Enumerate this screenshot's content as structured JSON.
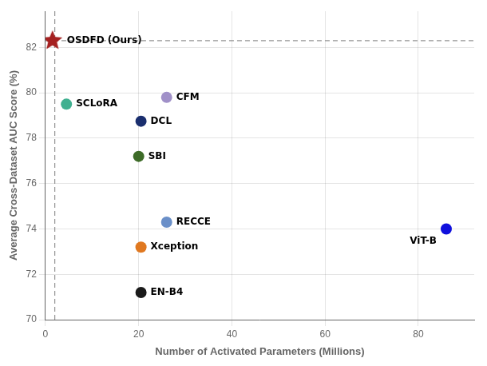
{
  "chart_data": {
    "type": "scatter",
    "xlabel": "Number of Activated Parameters (Millions)",
    "ylabel": "Average Cross-Dataset AUC Score (%)",
    "series": [
      {
        "name": "OSDFD (Ours)",
        "x": [
          1.5
        ],
        "values": [
          82.3
        ],
        "color": "#A52020",
        "marker": "star"
      },
      {
        "name": "SCLoRA",
        "x": [
          4.5
        ],
        "values": [
          79.5
        ],
        "color": "#40B090",
        "marker": "circle"
      },
      {
        "name": "CFM",
        "x": [
          26.0
        ],
        "values": [
          79.8
        ],
        "color": "#A090C8",
        "marker": "circle"
      },
      {
        "name": "DCL",
        "x": [
          20.5
        ],
        "values": [
          78.75
        ],
        "color": "#1A2E6E",
        "marker": "circle"
      },
      {
        "name": "SBI",
        "x": [
          20.0
        ],
        "values": [
          77.2
        ],
        "color": "#3D6B28",
        "marker": "circle"
      },
      {
        "name": "RECCE",
        "x": [
          26.0
        ],
        "values": [
          74.3
        ],
        "color": "#6A8FC8",
        "marker": "circle"
      },
      {
        "name": "Xception",
        "x": [
          20.5
        ],
        "values": [
          73.2
        ],
        "color": "#E07820",
        "marker": "circle"
      },
      {
        "name": "EN-B4",
        "x": [
          20.5
        ],
        "values": [
          71.2
        ],
        "color": "#1A1A1A",
        "marker": "circle"
      },
      {
        "name": "ViT-B",
        "x": [
          86.0
        ],
        "values": [
          74.0
        ],
        "color": "#1010DD",
        "marker": "circle"
      }
    ],
    "hline": 82.3,
    "vline": 2.0,
    "xlim": [
      0,
      92
    ],
    "ylim": [
      70,
      83.6
    ],
    "xticks": [
      0,
      20,
      40,
      60,
      80
    ],
    "yticks": [
      70,
      72,
      74,
      76,
      78,
      80,
      82
    ],
    "grid": true
  }
}
